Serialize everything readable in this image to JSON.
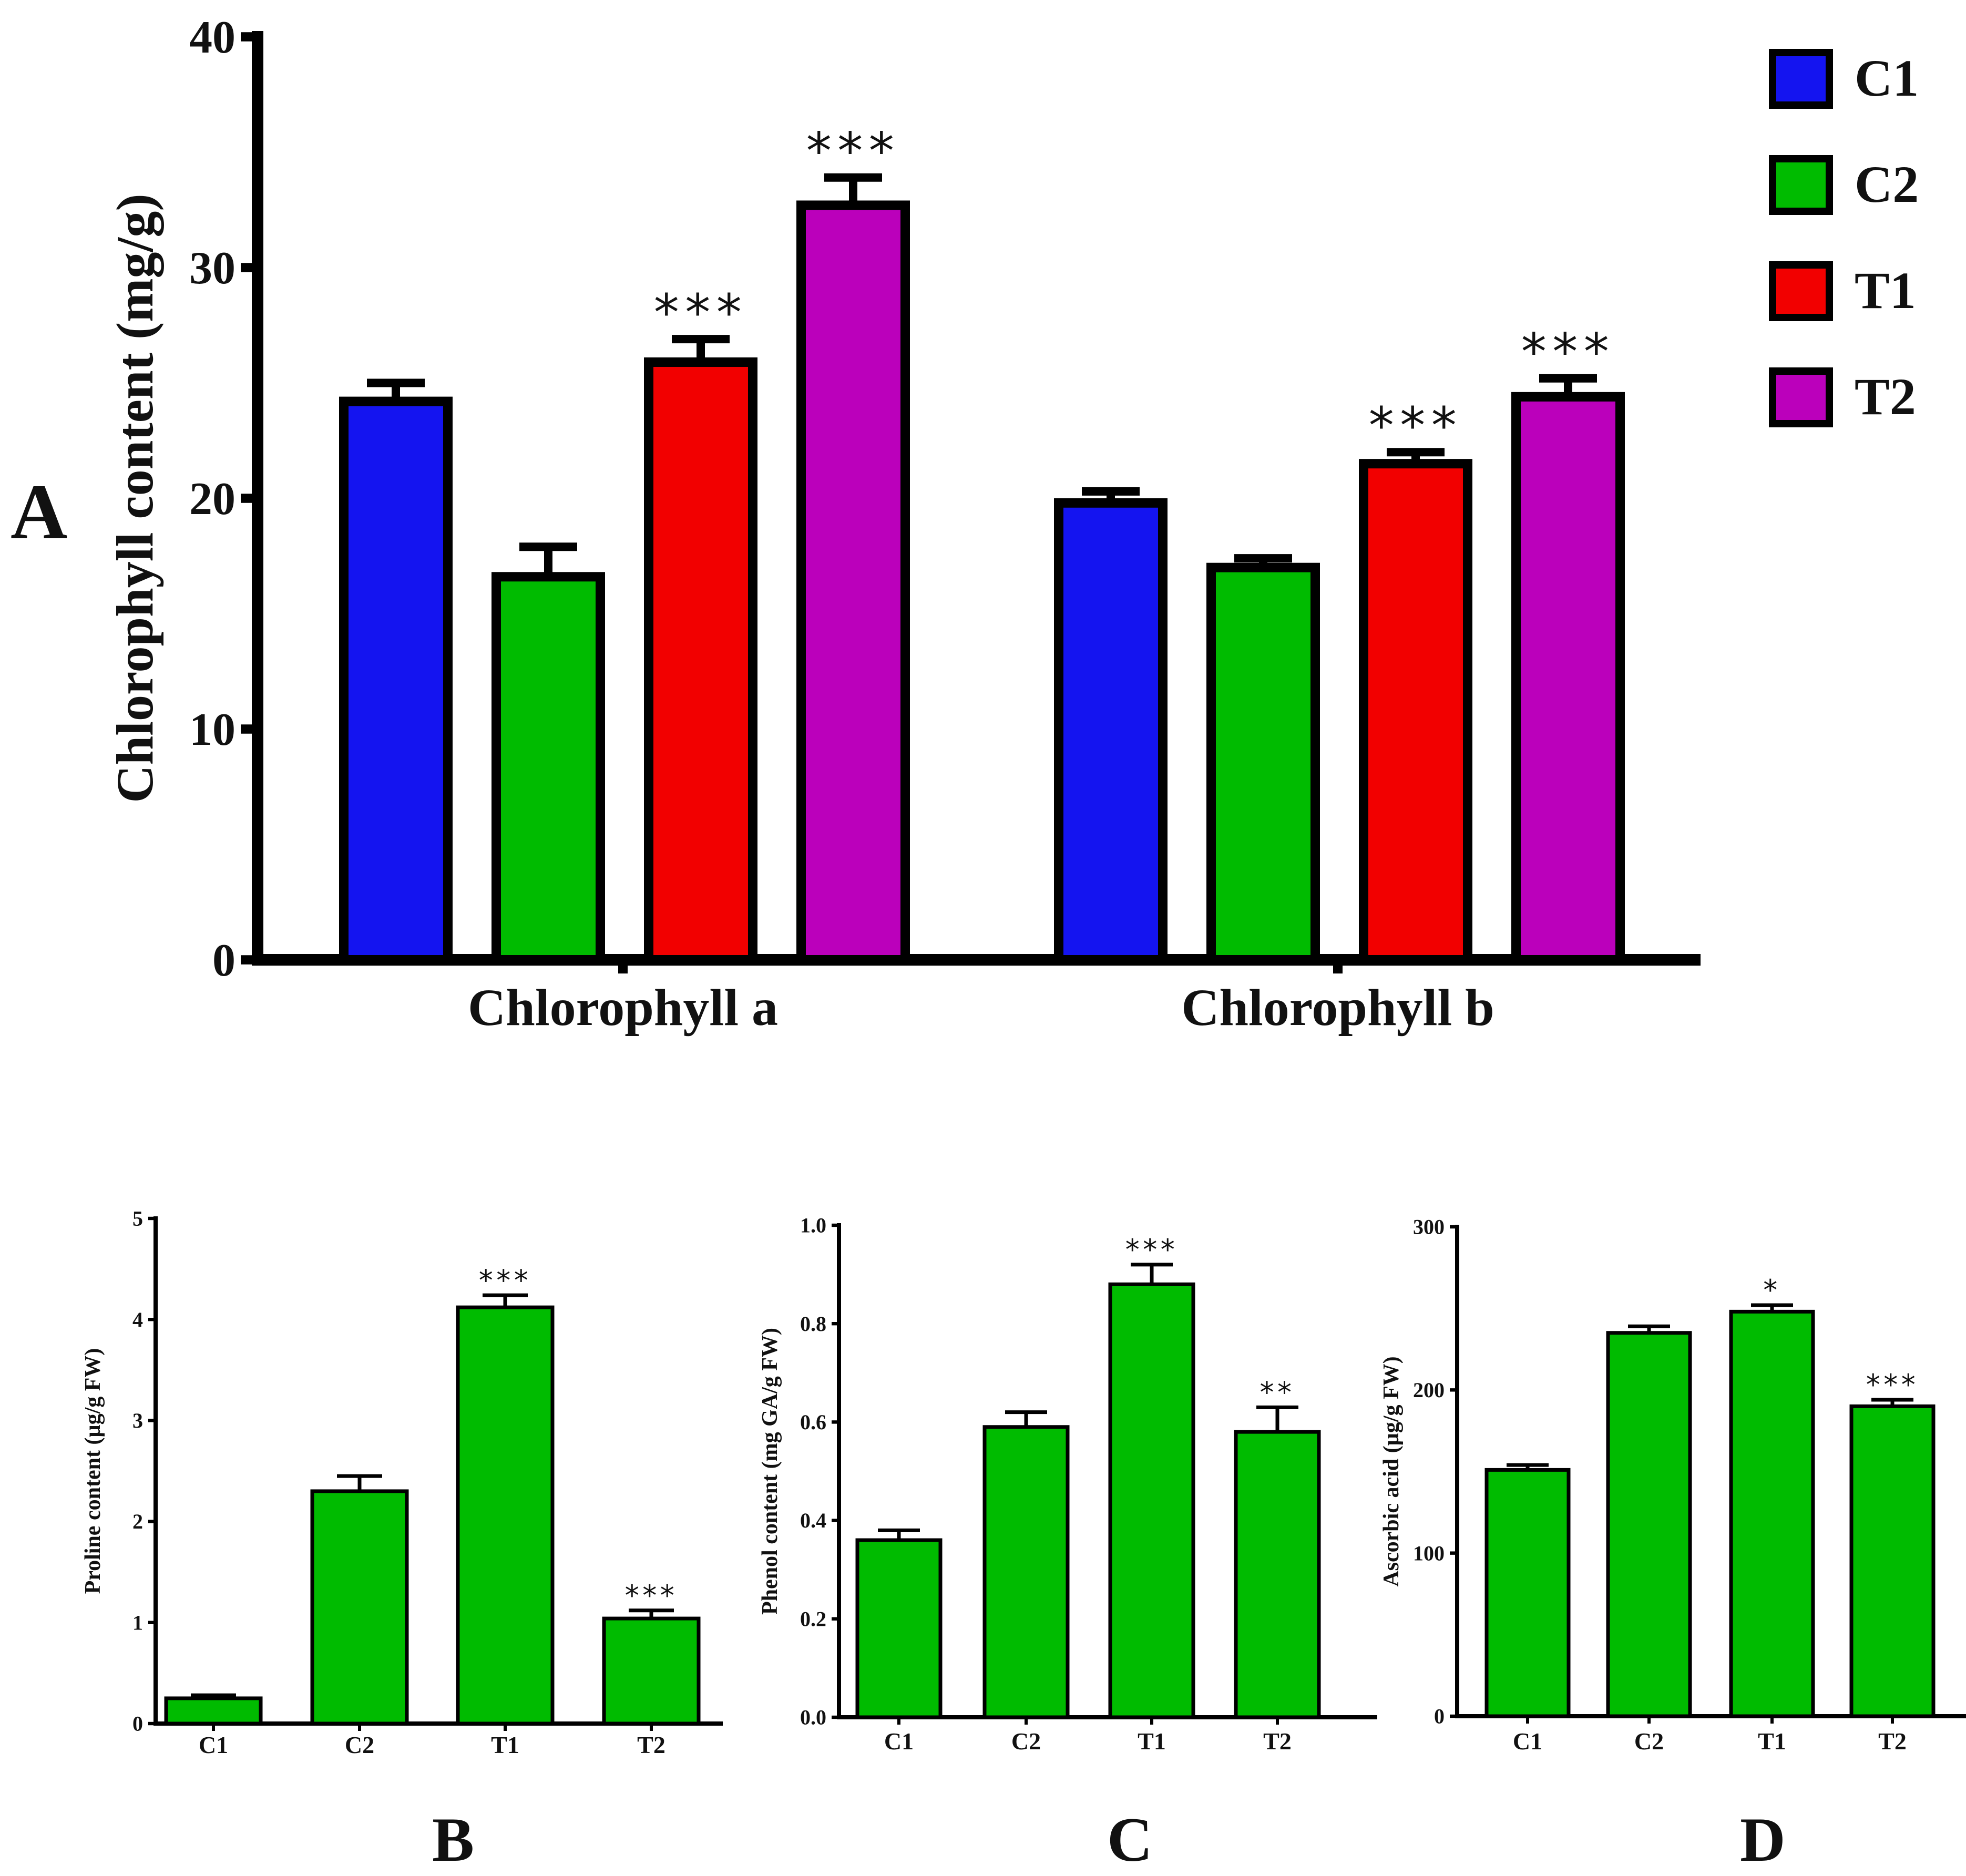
{
  "chart_data": [
    {
      "panel": "A",
      "type": "bar",
      "categories": [
        "Chlorophyll a",
        "Chlorophyll b"
      ],
      "series": [
        {
          "name": "C1",
          "color": "#1414f0",
          "values": [
            24.2,
            19.8
          ],
          "errors": [
            0.8,
            0.5
          ],
          "sig": [
            "",
            ""
          ]
        },
        {
          "name": "C2",
          "color": "#00bb00",
          "values": [
            16.6,
            17.0
          ],
          "errors": [
            1.3,
            0.4
          ],
          "sig": [
            "",
            ""
          ]
        },
        {
          "name": "T1",
          "color": "#f20000",
          "values": [
            25.9,
            21.5
          ],
          "errors": [
            1.0,
            0.5
          ],
          "sig": [
            "***",
            "***"
          ]
        },
        {
          "name": "T2",
          "color": "#bb00bb",
          "values": [
            32.7,
            24.4
          ],
          "errors": [
            1.2,
            0.8
          ],
          "sig": [
            "***",
            "***"
          ]
        }
      ],
      "ylabel": "Chlorophyll content (mg/g)",
      "ylim": [
        0,
        40
      ],
      "yticks": [
        "0",
        "10",
        "20",
        "30",
        "40"
      ],
      "legend": "top-right"
    },
    {
      "panel": "B",
      "type": "bar",
      "categories": [
        "C1",
        "C2",
        "T1",
        "T2"
      ],
      "values": [
        0.25,
        2.3,
        4.12,
        1.04
      ],
      "errors": [
        0.03,
        0.15,
        0.12,
        0.08
      ],
      "sig": [
        "",
        "",
        "***",
        "***"
      ],
      "color": "#00bb00",
      "ylabel": "Proline content (µg/g FW)",
      "ylim": [
        0,
        5
      ],
      "yticks": [
        "0",
        "1",
        "2",
        "3",
        "4",
        "5"
      ]
    },
    {
      "panel": "C",
      "type": "bar",
      "categories": [
        "C1",
        "C2",
        "T1",
        "T2"
      ],
      "values": [
        0.36,
        0.59,
        0.88,
        0.58
      ],
      "errors": [
        0.02,
        0.03,
        0.04,
        0.05
      ],
      "sig": [
        "",
        "",
        "***",
        "**"
      ],
      "color": "#00bb00",
      "ylabel": "Phenol content (mg GA/g FW)",
      "ylim": [
        0,
        1
      ],
      "yticks": [
        "0.0",
        "0.2",
        "0.4",
        "0.6",
        "0.8",
        "1.0"
      ]
    },
    {
      "panel": "D",
      "type": "bar",
      "categories": [
        "C1",
        "C2",
        "T1",
        "T2"
      ],
      "values": [
        151,
        235,
        248,
        190
      ],
      "errors": [
        3,
        4,
        4,
        4
      ],
      "sig": [
        "",
        "",
        "*",
        "***"
      ],
      "color": "#00bb00",
      "ylabel": "Ascorbic acid  (µg/g FW)",
      "ylim": [
        0,
        300
      ],
      "yticks": [
        "0",
        "100",
        "200",
        "300"
      ]
    }
  ]
}
